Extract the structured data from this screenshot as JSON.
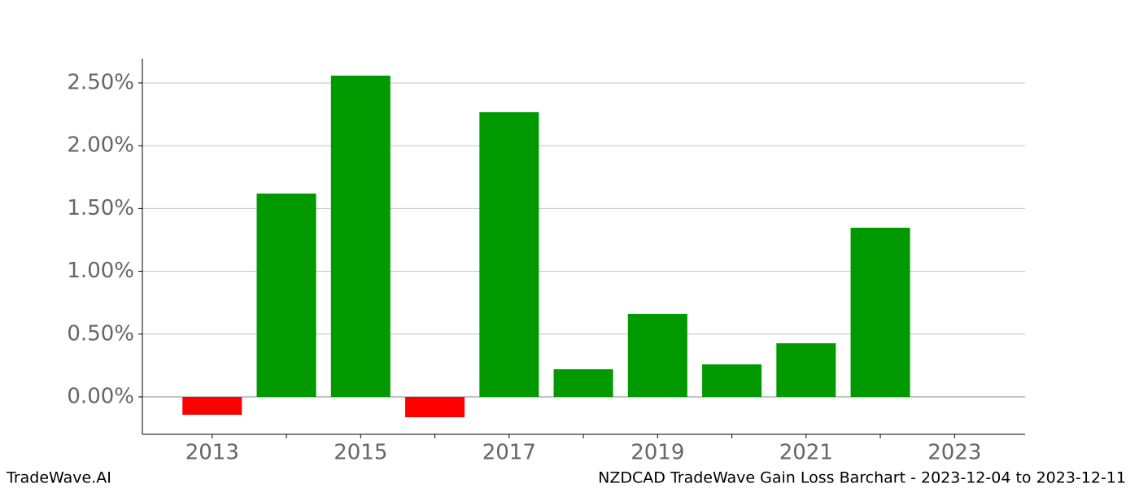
{
  "chart_data": {
    "type": "bar",
    "footer_left": "TradeWave.AI",
    "title": "NZDCAD TradeWave Gain Loss Barchart - 2023-12-04 to 2023-12-11",
    "x": [
      2013,
      2014,
      2015,
      2016,
      2017,
      2018,
      2019,
      2020,
      2021,
      2022
    ],
    "values": [
      -0.142,
      1.619,
      2.558,
      -0.162,
      2.267,
      0.22,
      0.661,
      0.259,
      0.427,
      1.347
    ],
    "positive_color": "#009900",
    "negative_color": "#ff0000",
    "xlim": [
      2012.06,
      2023.95
    ],
    "xticks": [
      2013,
      2015,
      2017,
      2019,
      2021,
      2023
    ],
    "xminorticks": [
      2014,
      2016,
      2018,
      2020,
      2022
    ],
    "ylim": [
      -0.298,
      2.694
    ],
    "yticks": [
      {
        "value": 0,
        "label": "0.00%"
      },
      {
        "value": 0.5,
        "label": "0.50%"
      },
      {
        "value": 1,
        "label": "1.00%"
      },
      {
        "value": 1.5,
        "label": "1.50%"
      },
      {
        "value": 2,
        "label": "2.00%"
      },
      {
        "value": 2.5,
        "label": "2.50%"
      }
    ],
    "grid": true
  }
}
